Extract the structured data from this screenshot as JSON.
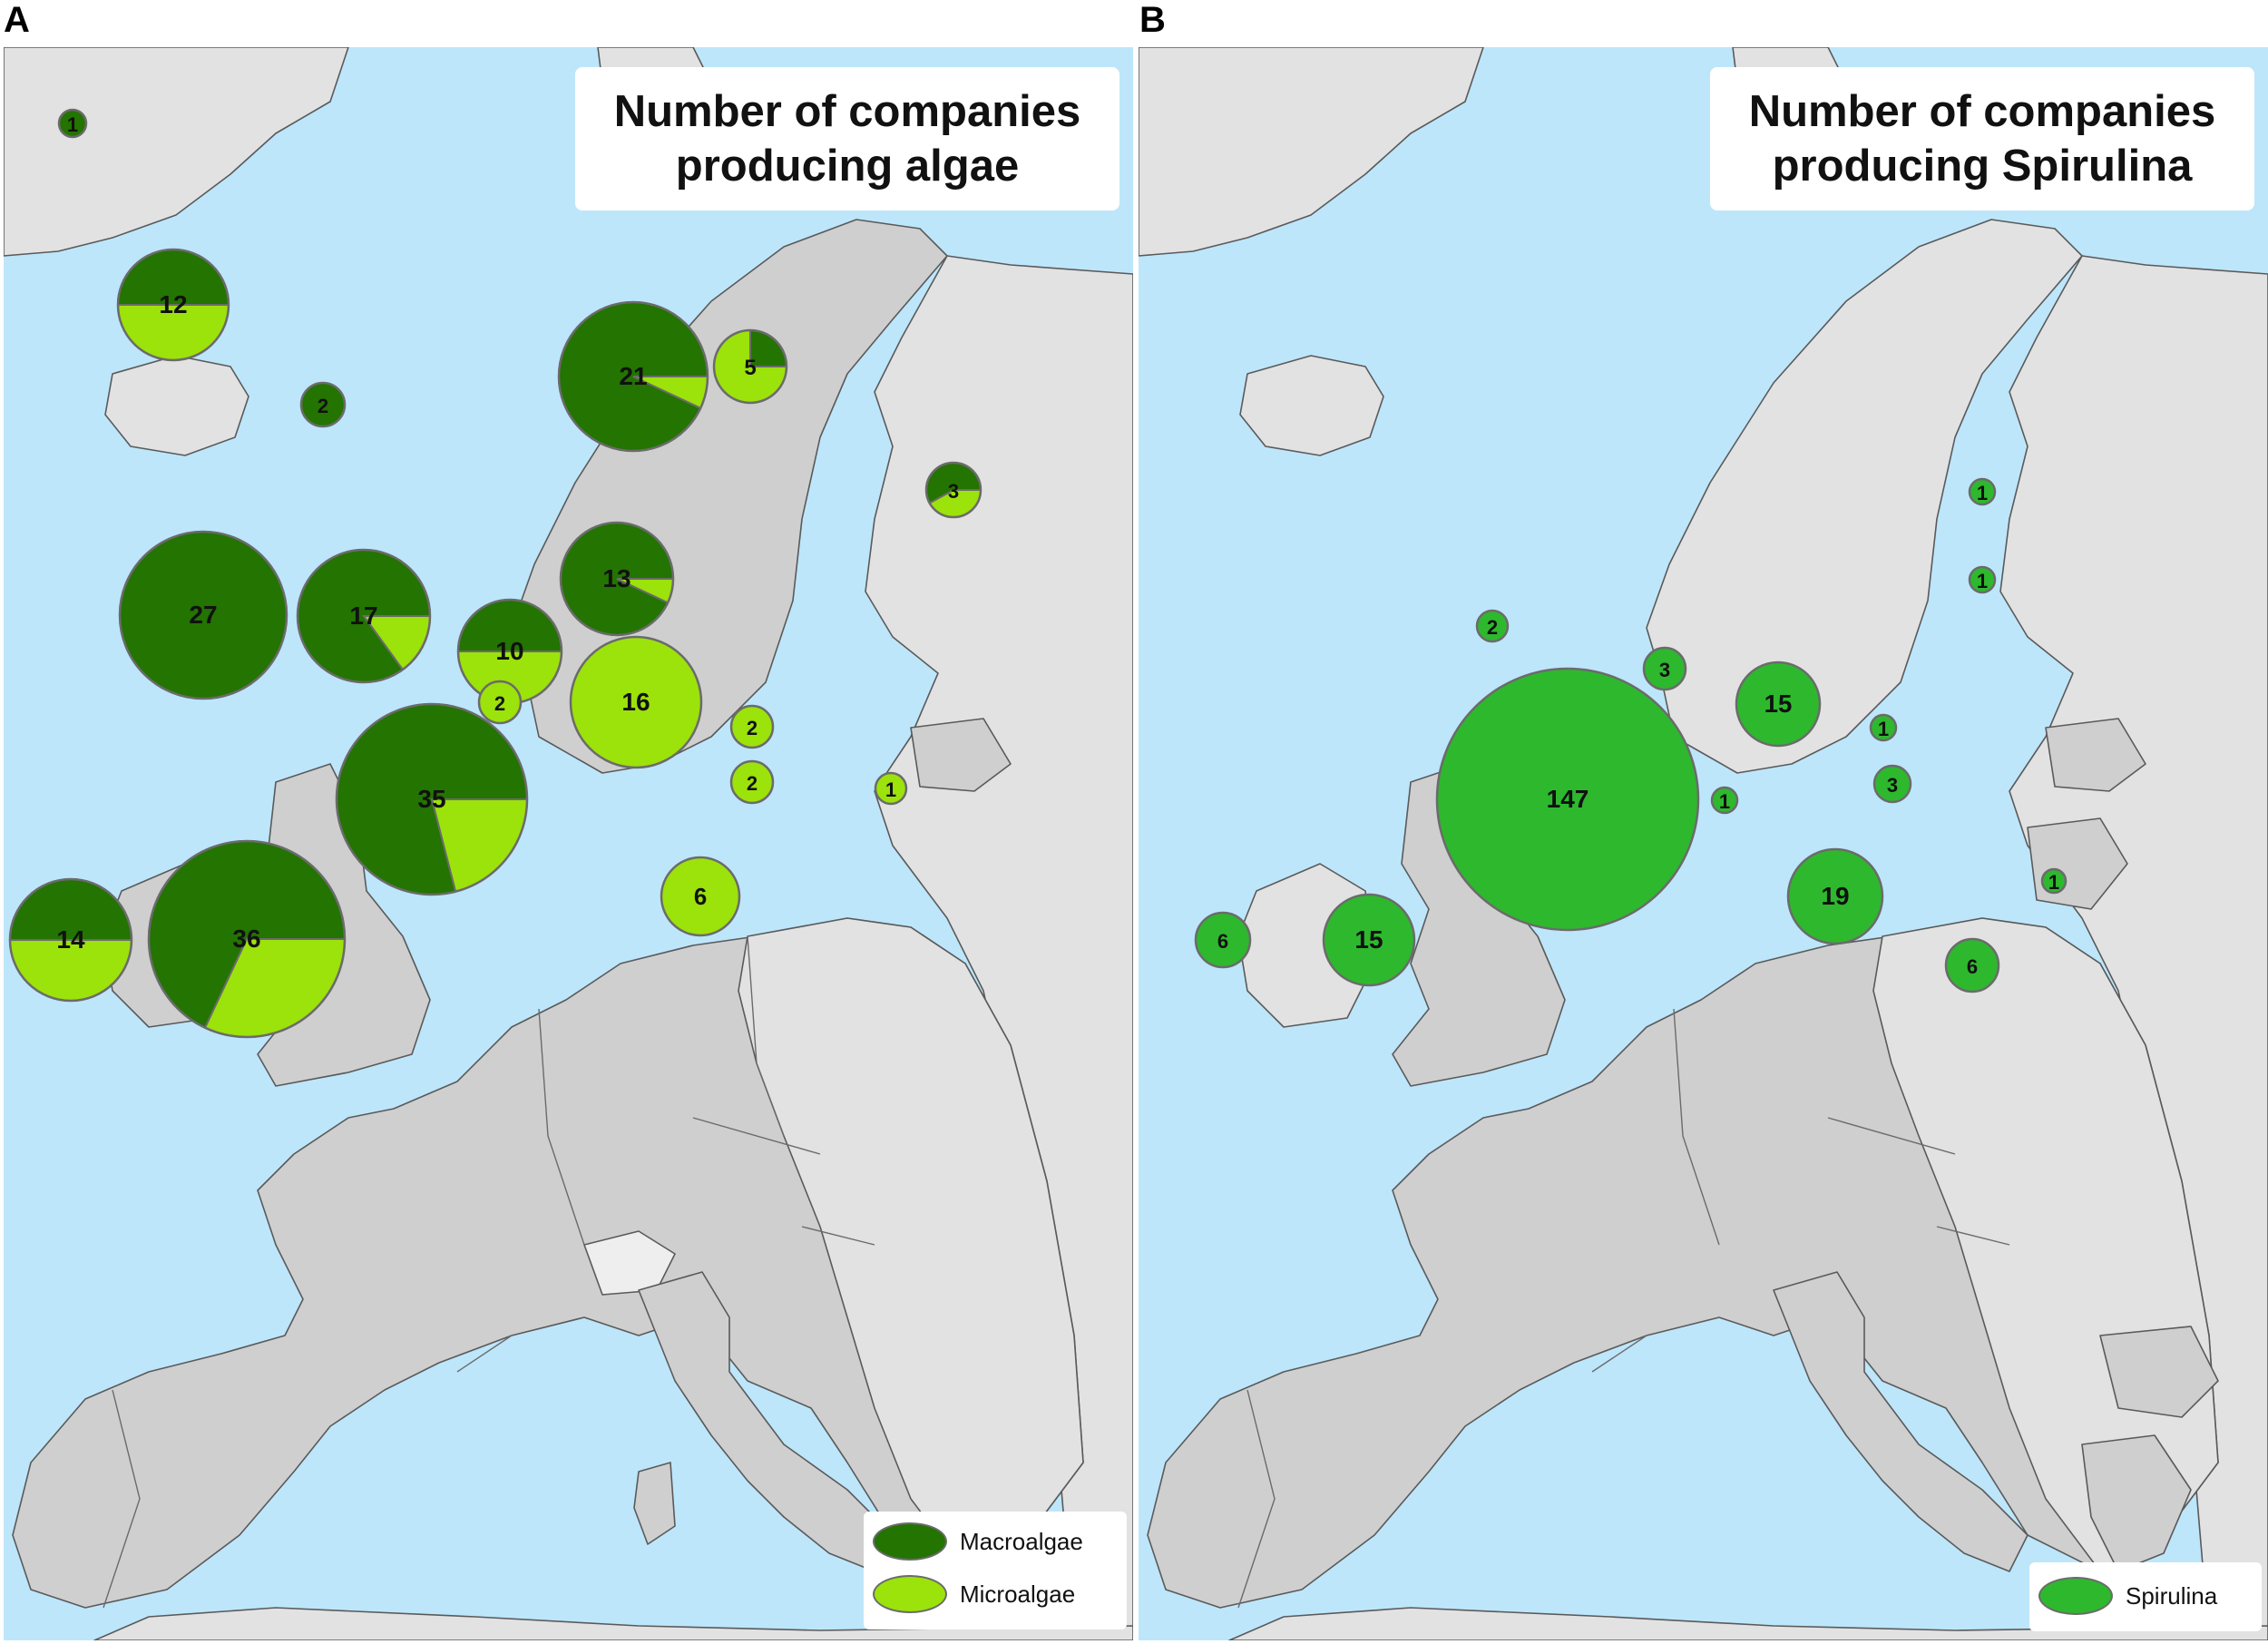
{
  "colors": {
    "sea": "#bde6fb",
    "study_land": "#cfcfcf",
    "other_land": "#e2e2e2",
    "macroalgae": "#237400",
    "microalgae": "#9ce20b",
    "spirulina": "#2eb82e",
    "marker_outline": "#6b6b6b"
  },
  "panels": [
    {
      "letter": "A",
      "title_line1": "Number of companies",
      "title_line2": "producing algae",
      "legend": [
        {
          "label": "Macroalgae",
          "color_key": "macroalgae"
        },
        {
          "label": "Microalgae",
          "color_key": "microalgae"
        }
      ],
      "markers": [
        {
          "label": "1",
          "macro": 1,
          "micro": 0
        },
        {
          "label": "12",
          "macro": 0.5,
          "micro": 0.5
        },
        {
          "label": "2",
          "macro": 1,
          "micro": 0
        },
        {
          "label": "21",
          "macro": 0.93,
          "micro": 0.07
        },
        {
          "label": "5",
          "macro": 0.25,
          "micro": 0.75
        },
        {
          "label": "3",
          "macro": 0.58,
          "micro": 0.42
        },
        {
          "label": "13",
          "macro": 0.93,
          "micro": 0.07
        },
        {
          "label": "27",
          "macro": 1,
          "micro": 0
        },
        {
          "label": "17",
          "macro": 0.85,
          "micro": 0.15
        },
        {
          "label": "10",
          "macro": 0.5,
          "micro": 0.5
        },
        {
          "label": "2",
          "macro": 0,
          "micro": 1
        },
        {
          "label": "16",
          "macro": 0,
          "micro": 1
        },
        {
          "label": "2",
          "macro": 0,
          "micro": 1
        },
        {
          "label": "2",
          "macro": 0,
          "micro": 1
        },
        {
          "label": "1",
          "macro": 0,
          "micro": 1
        },
        {
          "label": "35",
          "macro": 0.79,
          "micro": 0.21
        },
        {
          "label": "6",
          "macro": 0,
          "micro": 1
        },
        {
          "label": "14",
          "macro": 0.5,
          "micro": 0.5
        },
        {
          "label": "36",
          "macro": 0.68,
          "micro": 0.32
        }
      ]
    },
    {
      "letter": "B",
      "title_line1": "Number of companies",
      "title_line2": "producing Spirulina",
      "legend": [
        {
          "label": "Spirulina",
          "color_key": "spirulina"
        }
      ],
      "markers": [
        {
          "label": "1"
        },
        {
          "label": "1"
        },
        {
          "label": "2"
        },
        {
          "label": "3"
        },
        {
          "label": "1"
        },
        {
          "label": "15"
        },
        {
          "label": "1"
        },
        {
          "label": "147"
        },
        {
          "label": "1"
        },
        {
          "label": "3"
        },
        {
          "label": "19"
        },
        {
          "label": "1"
        },
        {
          "label": "6"
        },
        {
          "label": "15"
        },
        {
          "label": "6"
        }
      ]
    }
  ]
}
